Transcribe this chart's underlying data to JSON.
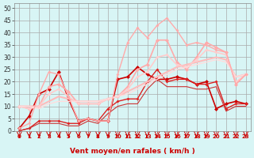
{
  "background_color": "#d8f5f5",
  "grid_color": "#aaaaaa",
  "xlabel": "Vent moyen/en rafales ( km/h )",
  "xlabel_color": "#cc0000",
  "ylabel_ticks": [
    0,
    5,
    10,
    15,
    20,
    25,
    30,
    35,
    40,
    45,
    50
  ],
  "xticks": [
    0,
    1,
    2,
    3,
    4,
    5,
    6,
    7,
    8,
    9,
    10,
    11,
    12,
    13,
    14,
    15,
    16,
    17,
    18,
    19,
    20,
    21,
    22,
    23
  ],
  "xlim": [
    -0.5,
    23.5
  ],
  "ylim": [
    0,
    52
  ],
  "series": [
    {
      "x": [
        0,
        1,
        2,
        3,
        4,
        5,
        6,
        7,
        8,
        9,
        10,
        11,
        12,
        13,
        14,
        15,
        16,
        17,
        18,
        19,
        20,
        21,
        22,
        23
      ],
      "y": [
        1,
        6,
        15,
        17,
        24,
        13,
        4,
        5,
        4,
        4,
        21,
        22,
        26,
        23,
        21,
        21,
        22,
        21,
        19,
        20,
        9,
        11,
        12,
        11
      ],
      "color": "#cc0000",
      "linewidth": 1.2,
      "marker": "D",
      "markersize": 2.5,
      "linestyle": "-"
    },
    {
      "x": [
        0,
        1,
        2,
        3,
        4,
        5,
        6,
        7,
        8,
        9,
        10,
        11,
        12,
        13,
        14,
        15,
        16,
        17,
        18,
        19,
        20,
        21,
        22,
        23
      ],
      "y": [
        0,
        1,
        4,
        4,
        4,
        3,
        3,
        5,
        4,
        9,
        12,
        13,
        13,
        20,
        25,
        20,
        21,
        21,
        19,
        19,
        20,
        9,
        11,
        11
      ],
      "color": "#dd2222",
      "linewidth": 1.0,
      "marker": "D",
      "markersize": 2,
      "linestyle": "-"
    },
    {
      "x": [
        0,
        1,
        2,
        3,
        4,
        5,
        6,
        7,
        8,
        9,
        10,
        11,
        12,
        13,
        14,
        15,
        16,
        17,
        18,
        19,
        20,
        21,
        22,
        23
      ],
      "y": [
        10,
        9,
        10,
        18,
        19,
        16,
        11,
        11,
        11,
        13,
        14,
        18,
        25,
        27,
        37,
        37,
        28,
        25,
        30,
        36,
        34,
        32,
        19,
        23
      ],
      "color": "#ffaaaa",
      "linewidth": 1.2,
      "marker": "D",
      "markersize": 2.5,
      "linestyle": "-"
    },
    {
      "x": [
        0,
        1,
        2,
        3,
        4,
        5,
        6,
        7,
        8,
        9,
        10,
        11,
        12,
        13,
        14,
        15,
        16,
        17,
        18,
        19,
        20,
        21,
        22,
        23
      ],
      "y": [
        10,
        10,
        10,
        12,
        14,
        13,
        12,
        12,
        12,
        13,
        14,
        16,
        18,
        20,
        22,
        24,
        26,
        27,
        28,
        29,
        30,
        29,
        22,
        23
      ],
      "color": "#ffbbbb",
      "linewidth": 1.5,
      "marker": null,
      "markersize": 0,
      "linestyle": "-"
    },
    {
      "x": [
        0,
        1,
        2,
        3,
        4,
        5,
        6,
        7,
        8,
        9,
        10,
        11,
        12,
        13,
        14,
        15,
        16,
        17,
        18,
        19,
        20,
        21,
        22,
        23
      ],
      "y": [
        10,
        9,
        10,
        15,
        17,
        14,
        11,
        11,
        11,
        13,
        14,
        17,
        22,
        24,
        30,
        31,
        27,
        26,
        29,
        33,
        32,
        31,
        20,
        23
      ],
      "color": "#ffcccc",
      "linewidth": 1.2,
      "marker": "D",
      "markersize": 2,
      "linestyle": "-"
    },
    {
      "x": [
        0,
        1,
        2,
        3,
        4,
        5,
        6,
        7,
        8,
        9,
        10,
        11,
        12,
        13,
        14,
        15,
        16,
        17,
        18,
        19,
        20,
        21,
        22,
        23
      ],
      "y": [
        0,
        1,
        3,
        3,
        3,
        2,
        2,
        4,
        3,
        7,
        10,
        11,
        11,
        17,
        21,
        18,
        18,
        18,
        17,
        17,
        18,
        8,
        10,
        10
      ],
      "color": "#cc3333",
      "linewidth": 0.8,
      "marker": null,
      "markersize": 0,
      "linestyle": "-"
    },
    {
      "x": [
        0,
        1,
        2,
        3,
        4,
        5,
        6,
        7,
        8,
        9,
        10,
        11,
        12,
        13,
        14,
        15,
        16,
        17,
        18,
        19,
        20,
        21,
        22,
        23
      ],
      "y": [
        10,
        10,
        9,
        11,
        12,
        12,
        12,
        12,
        12,
        13,
        14,
        15,
        17,
        19,
        21,
        23,
        25,
        26,
        27,
        28,
        29,
        28,
        22,
        23
      ],
      "color": "#ffdddd",
      "linewidth": 1.0,
      "marker": null,
      "markersize": 0,
      "linestyle": "-"
    },
    {
      "x": [
        0,
        1,
        2,
        3,
        4,
        5,
        6,
        7,
        8,
        9,
        10,
        11,
        12,
        13,
        14,
        15,
        16,
        17,
        18,
        19,
        20,
        21,
        22,
        23
      ],
      "y": [
        1,
        3,
        15,
        24,
        23,
        14,
        4,
        5,
        4,
        4,
        23,
        36,
        42,
        38,
        43,
        46,
        41,
        35,
        36,
        35,
        33,
        32,
        19,
        23
      ],
      "color": "#ffaaaa",
      "linewidth": 1.0,
      "marker": "D",
      "markersize": 2,
      "linestyle": "-"
    }
  ],
  "arrow_color": "#cc0000"
}
